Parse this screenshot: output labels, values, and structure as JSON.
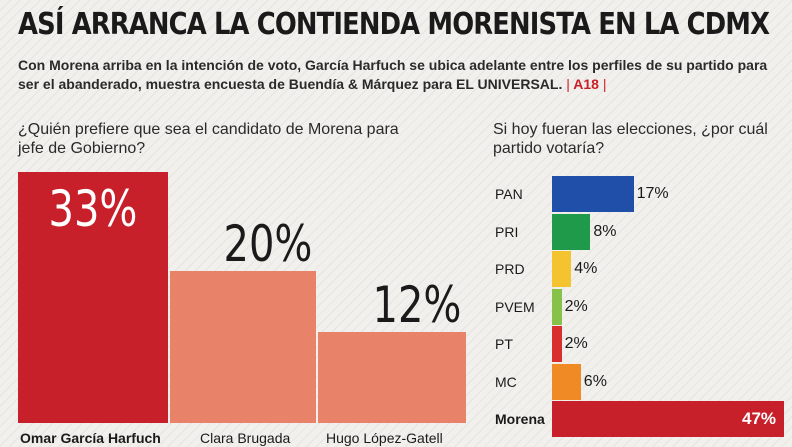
{
  "header": {
    "title": "ASÍ ARRANCA LA CONTIENDA MORENISTA EN LA CDMX",
    "subtitle": "Con Morena arriba en la intención de voto, García Harfuch se ubica adelante entre los perfiles de su partido para ser el abanderado, muestra encuesta de Buendía & Márquez para EL UNIVERSAL.",
    "page_ref": "A18"
  },
  "questions": {
    "left": "¿Quién prefiere que sea el candidato de Morena para jefe de Gobierno?",
    "right": "Si hoy fueran las elecciones, ¿por cuál partido votaría?"
  },
  "colors": {
    "morena_red": "#c8202a",
    "salmon": "#e8836a",
    "PAN": "#1f4fa8",
    "PRI": "#1e9a4a",
    "PRD": "#f4c430",
    "PVEM": "#86c24a",
    "PT": "#d82e2e",
    "MC": "#f08a24",
    "Morena": "#c8202a"
  },
  "chart_data": [
    {
      "type": "bar",
      "title": "¿Quién prefiere que sea el candidato de Morena para jefe de Gobierno?",
      "categories": [
        "Omar García Harfuch",
        "Clara Brugada",
        "Hugo López-Gatell"
      ],
      "values": [
        33,
        20,
        12
      ],
      "labels": [
        "33%",
        "20%",
        "12%"
      ],
      "unit": "%"
    },
    {
      "type": "bar",
      "orientation": "horizontal",
      "title": "Si hoy fueran las elecciones, ¿por cuál partido votaría?",
      "categories": [
        "PAN",
        "PRI",
        "PRD",
        "PVEM",
        "PT",
        "MC",
        "Morena"
      ],
      "values": [
        17,
        8,
        4,
        2,
        2,
        6,
        47
      ],
      "labels": [
        "17%",
        "8%",
        "4%",
        "2%",
        "2%",
        "6%",
        "47%"
      ],
      "unit": "%"
    }
  ]
}
